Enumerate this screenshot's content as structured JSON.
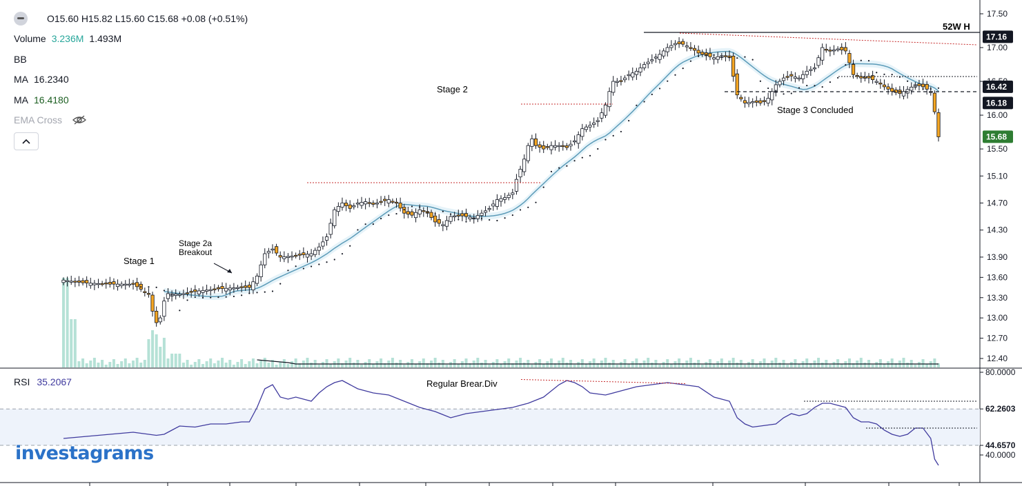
{
  "header": {
    "ohlc": "O15.60 H15.82 L15.60 C15.68 +0.08 (+0.51%)",
    "volume_label": "Volume",
    "volume_a": "3.236M",
    "volume_b": "1.493M",
    "bb_label": "BB",
    "ma1_label": "MA",
    "ma1_value": "16.2340",
    "ma2_label": "MA",
    "ma2_value": "16.4180",
    "ema_label": "EMA Cross",
    "toggle_icon": "chevron-up-icon"
  },
  "rsi_legend": {
    "label": "RSI",
    "value": "35.2067"
  },
  "logo_text": "investagrams",
  "colors": {
    "up": "#ffffff",
    "down": "#f5a623",
    "wick": "#131722",
    "ma_line": "#5b9bb8",
    "rsi_line": "#3f3a9e",
    "volume": "#a8dccf",
    "price_tag": "#131722",
    "last_tag": "#2e7d32",
    "annotation_red": "#c62828"
  },
  "chart_data": {
    "type": "candlestick",
    "price_axis": {
      "ticks": [
        "17.50",
        "17.00",
        "16.50",
        "16.00",
        "15.50",
        "15.10",
        "14.70",
        "14.30",
        "13.90",
        "13.60",
        "13.30",
        "13.00",
        "12.70",
        "12.40"
      ]
    },
    "price_tags": [
      {
        "label": "17.16",
        "value": 17.16
      },
      {
        "label": "16.42",
        "value": 16.42
      },
      {
        "label": "16.18",
        "value": 16.18
      },
      {
        "label": "15.68",
        "value": 15.68,
        "last": true
      }
    ],
    "level_labels": {
      "high_52w": "52W H"
    },
    "annotations": [
      "Stage 1",
      "Stage 2a",
      "Breakout",
      "Stage 2",
      "Stage 3 Concluded"
    ],
    "price_points": [
      [
        0,
        13.56
      ],
      [
        5,
        13.52
      ],
      [
        12,
        13.5
      ],
      [
        18,
        13.5
      ],
      [
        22,
        13.35
      ],
      [
        23,
        13.1
      ],
      [
        24,
        12.93
      ],
      [
        25,
        13.0
      ],
      [
        26,
        13.25
      ],
      [
        27,
        13.36
      ],
      [
        30,
        13.35
      ],
      [
        35,
        13.4
      ],
      [
        40,
        13.43
      ],
      [
        45,
        13.45
      ],
      [
        48,
        13.45
      ],
      [
        50,
        13.62
      ],
      [
        52,
        13.95
      ],
      [
        54,
        14.02
      ],
      [
        56,
        13.9
      ],
      [
        60,
        13.92
      ],
      [
        64,
        13.95
      ],
      [
        66,
        14.05
      ],
      [
        68,
        14.2
      ],
      [
        70,
        14.6
      ],
      [
        72,
        14.7
      ],
      [
        74,
        14.62
      ],
      [
        76,
        14.7
      ],
      [
        78,
        14.72
      ],
      [
        80,
        14.68
      ],
      [
        82,
        14.72
      ],
      [
        84,
        14.75
      ],
      [
        86,
        14.7
      ],
      [
        88,
        14.55
      ],
      [
        90,
        14.52
      ],
      [
        92,
        14.6
      ],
      [
        94,
        14.55
      ],
      [
        96,
        14.42
      ],
      [
        98,
        14.38
      ],
      [
        100,
        14.5
      ],
      [
        102,
        14.52
      ],
      [
        104,
        14.5
      ],
      [
        106,
        14.48
      ],
      [
        108,
        14.55
      ],
      [
        110,
        14.62
      ],
      [
        112,
        14.75
      ],
      [
        114,
        14.78
      ],
      [
        116,
        14.85
      ],
      [
        117,
        15.05
      ],
      [
        118,
        15.2
      ],
      [
        119,
        15.35
      ],
      [
        120,
        15.55
      ],
      [
        121,
        15.65
      ],
      [
        122,
        15.55
      ],
      [
        124,
        15.5
      ],
      [
        126,
        15.55
      ],
      [
        128,
        15.55
      ],
      [
        130,
        15.52
      ],
      [
        132,
        15.62
      ],
      [
        134,
        15.8
      ],
      [
        136,
        15.85
      ],
      [
        138,
        15.92
      ],
      [
        140,
        16.15
      ],
      [
        141,
        16.35
      ],
      [
        142,
        16.5
      ],
      [
        144,
        16.5
      ],
      [
        146,
        16.6
      ],
      [
        148,
        16.65
      ],
      [
        150,
        16.75
      ],
      [
        152,
        16.82
      ],
      [
        154,
        16.9
      ],
      [
        156,
        17.0
      ],
      [
        158,
        17.06
      ],
      [
        160,
        17.05
      ],
      [
        162,
        17.0
      ],
      [
        164,
        16.92
      ],
      [
        166,
        16.88
      ],
      [
        168,
        16.85
      ],
      [
        170,
        16.88
      ],
      [
        172,
        16.85
      ],
      [
        174,
        16.3
      ],
      [
        176,
        16.18
      ],
      [
        178,
        16.2
      ],
      [
        180,
        16.18
      ],
      [
        182,
        16.25
      ],
      [
        184,
        16.45
      ],
      [
        186,
        16.55
      ],
      [
        188,
        16.58
      ],
      [
        190,
        16.55
      ],
      [
        192,
        16.65
      ],
      [
        194,
        16.7
      ],
      [
        196,
        17.0
      ],
      [
        198,
        16.95
      ],
      [
        200,
        16.98
      ],
      [
        202,
        16.95
      ],
      [
        204,
        16.6
      ],
      [
        206,
        16.55
      ],
      [
        208,
        16.55
      ],
      [
        210,
        16.5
      ],
      [
        212,
        16.42
      ],
      [
        214,
        16.35
      ],
      [
        216,
        16.32
      ],
      [
        218,
        16.38
      ],
      [
        220,
        16.45
      ],
      [
        222,
        16.42
      ],
      [
        224,
        16.35
      ],
      [
        225,
        16.05
      ],
      [
        226,
        15.68
      ]
    ],
    "rsi": {
      "ticks": [
        "80.0000",
        "62.2603",
        "44.6570",
        "40.0000"
      ],
      "annotation": "Regular Brear.Div",
      "points": [
        [
          0,
          48
        ],
        [
          6,
          49
        ],
        [
          12,
          50
        ],
        [
          18,
          51
        ],
        [
          24,
          49.5
        ],
        [
          26,
          50
        ],
        [
          28,
          52
        ],
        [
          30,
          54
        ],
        [
          34,
          53.5
        ],
        [
          38,
          55
        ],
        [
          42,
          55
        ],
        [
          46,
          56
        ],
        [
          48,
          56
        ],
        [
          50,
          63
        ],
        [
          52,
          72
        ],
        [
          54,
          74
        ],
        [
          56,
          68
        ],
        [
          58,
          67
        ],
        [
          60,
          68
        ],
        [
          64,
          66
        ],
        [
          66,
          70
        ],
        [
          68,
          73
        ],
        [
          70,
          75
        ],
        [
          72,
          76
        ],
        [
          74,
          74
        ],
        [
          76,
          72
        ],
        [
          80,
          70
        ],
        [
          84,
          69
        ],
        [
          88,
          66
        ],
        [
          92,
          63
        ],
        [
          96,
          61
        ],
        [
          100,
          58
        ],
        [
          104,
          60
        ],
        [
          108,
          61
        ],
        [
          112,
          62
        ],
        [
          116,
          63
        ],
        [
          120,
          65
        ],
        [
          124,
          68
        ],
        [
          126,
          71
        ],
        [
          128,
          74
        ],
        [
          130,
          76
        ],
        [
          132,
          75
        ],
        [
          134,
          73
        ],
        [
          136,
          70
        ],
        [
          140,
          69
        ],
        [
          144,
          71
        ],
        [
          148,
          73
        ],
        [
          152,
          74
        ],
        [
          156,
          75
        ],
        [
          160,
          74
        ],
        [
          164,
          73
        ],
        [
          168,
          68
        ],
        [
          170,
          67
        ],
        [
          172,
          66
        ],
        [
          174,
          58
        ],
        [
          176,
          55
        ],
        [
          178,
          53.5
        ],
        [
          180,
          54
        ],
        [
          184,
          55
        ],
        [
          186,
          58
        ],
        [
          188,
          60
        ],
        [
          190,
          59
        ],
        [
          192,
          60
        ],
        [
          194,
          63
        ],
        [
          196,
          65
        ],
        [
          198,
          65
        ],
        [
          200,
          64
        ],
        [
          202,
          63
        ],
        [
          204,
          58
        ],
        [
          206,
          56
        ],
        [
          208,
          56
        ],
        [
          210,
          55
        ],
        [
          212,
          52
        ],
        [
          214,
          50
        ],
        [
          216,
          49
        ],
        [
          218,
          50
        ],
        [
          220,
          53
        ],
        [
          222,
          53
        ],
        [
          224,
          48
        ],
        [
          225,
          38
        ],
        [
          226,
          35
        ]
      ]
    }
  }
}
